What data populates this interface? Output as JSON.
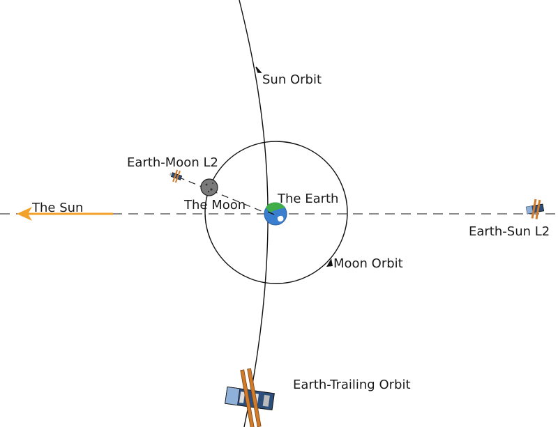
{
  "labels": {
    "sun_orbit": "Sun Orbit",
    "earth_moon_l2": "Earth-Moon L2",
    "the_moon": "The Moon",
    "the_earth": "The Earth",
    "the_sun": "The Sun",
    "moon_orbit": "Moon Orbit",
    "earth_sun_l2": "Earth-Sun L2",
    "earth_trailing_orbit": "Earth-Trailing Orbit"
  },
  "colors": {
    "sun_arrow": "#f2a12b",
    "earth_ocean": "#3a7fcf",
    "earth_land": "#3fae49",
    "moon": "#7a7a7a",
    "orbit_line": "#111111",
    "dashed_axis": "#666666",
    "solar_panel": "#d07a2a",
    "spacecraft_body": "#2b4e7a"
  },
  "icons": {
    "earth": "earth-icon",
    "moon": "moon-icon",
    "spacecraft": "spacecraft-icon"
  }
}
